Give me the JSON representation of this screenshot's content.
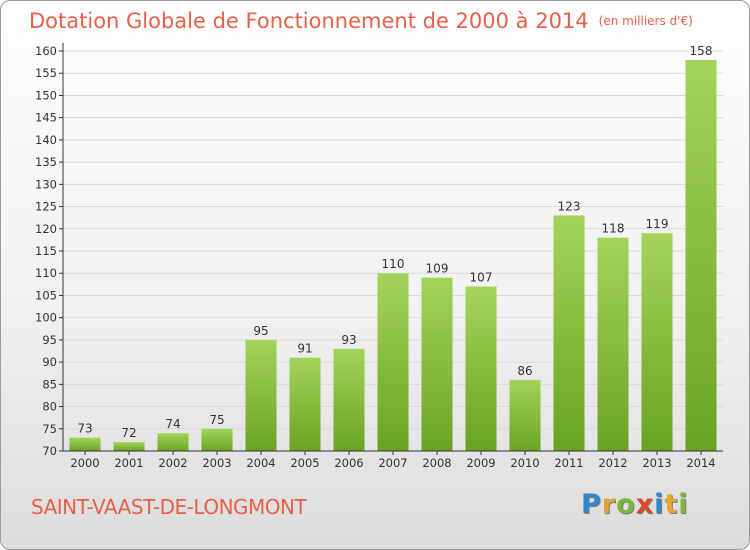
{
  "header": {
    "title": "Dotation Globale de Fonctionnement de 2000 à 2014",
    "subtitle": "(en milliers d'€)"
  },
  "footer": {
    "commune": "SAINT-VAAST-DE-LONGMONT",
    "brand_letters": [
      "P",
      "r",
      "o",
      "x",
      "i",
      "t",
      "i"
    ],
    "brand_colors": [
      "#2f86c9",
      "#e0a83a",
      "#7fb53a",
      "#d84a2a",
      "#2f86c9",
      "#e0a83a",
      "#7fb53a"
    ]
  },
  "colors": {
    "bar_light": "#a3d45a",
    "bar_dark": "#6aa322",
    "accent": "#e8604a",
    "grid": "#d9d9d9",
    "axis": "#333333"
  },
  "chart_data": {
    "type": "bar",
    "categories": [
      "2000",
      "2001",
      "2002",
      "2003",
      "2004",
      "2005",
      "2006",
      "2007",
      "2008",
      "2009",
      "2010",
      "2011",
      "2012",
      "2013",
      "2014"
    ],
    "values": [
      73,
      72,
      74,
      75,
      95,
      91,
      93,
      110,
      109,
      107,
      86,
      123,
      118,
      119,
      158
    ],
    "ylim": [
      70,
      160
    ],
    "yticks": [
      70,
      75,
      80,
      85,
      90,
      95,
      100,
      105,
      110,
      115,
      120,
      125,
      130,
      135,
      140,
      145,
      150,
      155,
      160
    ],
    "grid": true,
    "data_labels": true
  }
}
